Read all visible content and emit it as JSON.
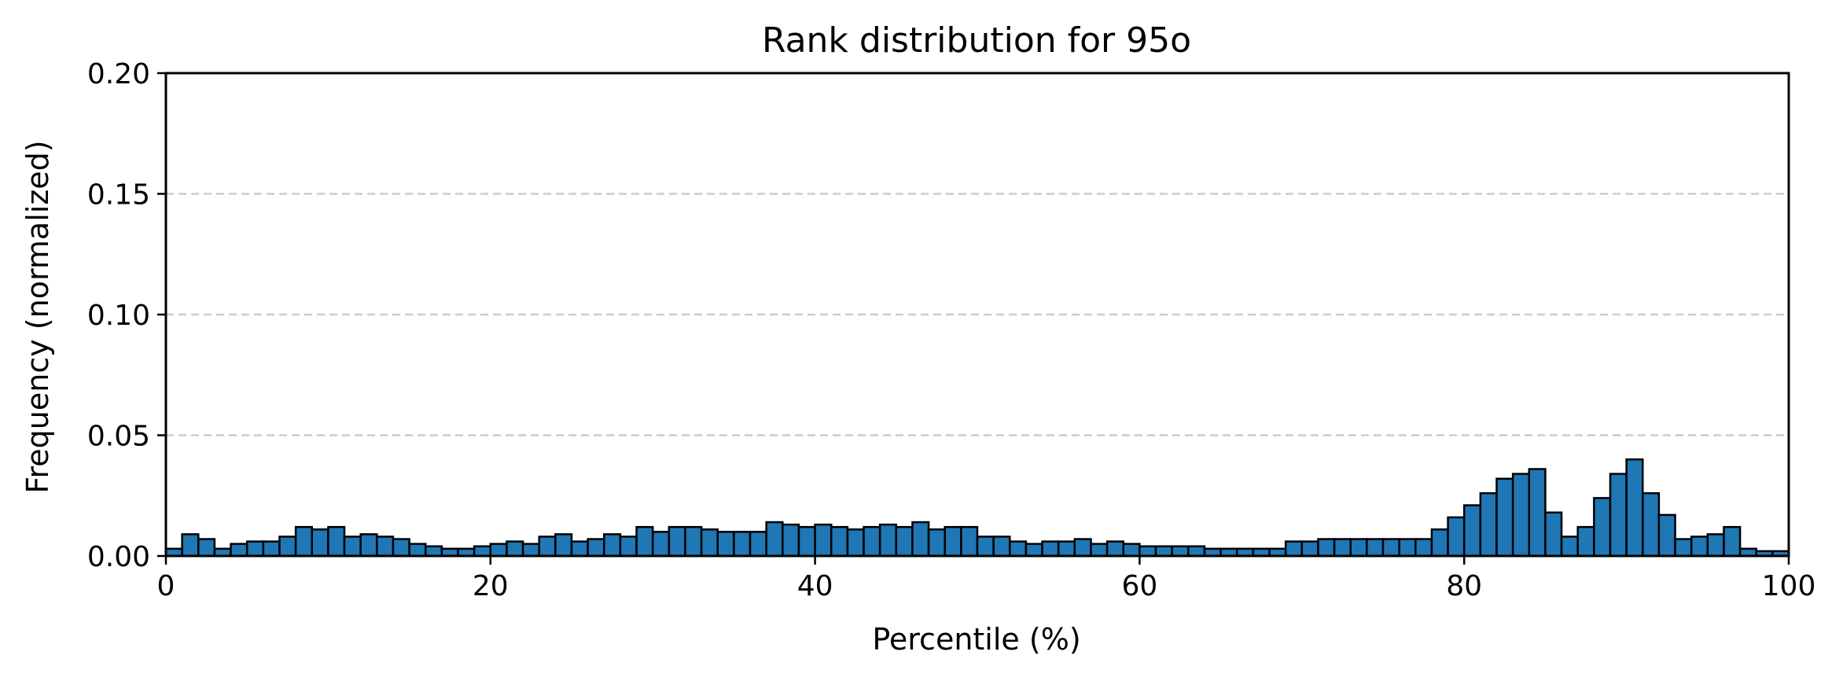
{
  "chart_data": {
    "type": "bar",
    "title": "Rank distribution for 95o",
    "xlabel": "Percentile (%)",
    "ylabel": "Frequency (normalized)",
    "xlim": [
      0,
      100
    ],
    "ylim": [
      0,
      0.2
    ],
    "xticks": [
      0,
      20,
      40,
      60,
      80,
      100
    ],
    "xtick_labels": [
      "0",
      "20",
      "40",
      "60",
      "80",
      "100"
    ],
    "yticks": [
      0,
      0.05,
      0.1,
      0.15,
      0.2
    ],
    "ytick_labels": [
      "0.00",
      "0.05",
      "0.10",
      "0.15",
      "0.20"
    ],
    "bin_width": 1,
    "bin_start": 0,
    "grid": "horizontal dashed",
    "bar_color": "#1f77b4",
    "edge_color": "#000000",
    "grid_color": "#cccccc",
    "values": [
      0.003,
      0.009,
      0.007,
      0.003,
      0.005,
      0.006,
      0.006,
      0.008,
      0.012,
      0.011,
      0.012,
      0.008,
      0.009,
      0.008,
      0.007,
      0.005,
      0.004,
      0.003,
      0.003,
      0.004,
      0.005,
      0.006,
      0.005,
      0.008,
      0.009,
      0.006,
      0.007,
      0.009,
      0.008,
      0.012,
      0.01,
      0.012,
      0.012,
      0.011,
      0.01,
      0.01,
      0.01,
      0.014,
      0.013,
      0.012,
      0.013,
      0.012,
      0.011,
      0.012,
      0.013,
      0.012,
      0.014,
      0.011,
      0.012,
      0.012,
      0.008,
      0.008,
      0.006,
      0.005,
      0.006,
      0.006,
      0.007,
      0.005,
      0.006,
      0.005,
      0.004,
      0.004,
      0.004,
      0.004,
      0.003,
      0.003,
      0.003,
      0.003,
      0.003,
      0.006,
      0.006,
      0.007,
      0.007,
      0.007,
      0.007,
      0.007,
      0.007,
      0.007,
      0.011,
      0.016,
      0.021,
      0.026,
      0.032,
      0.034,
      0.036,
      0.018,
      0.008,
      0.012,
      0.024,
      0.034,
      0.04,
      0.026,
      0.017,
      0.007,
      0.008,
      0.009,
      0.012,
      0.003,
      0.002,
      0.002
    ]
  }
}
